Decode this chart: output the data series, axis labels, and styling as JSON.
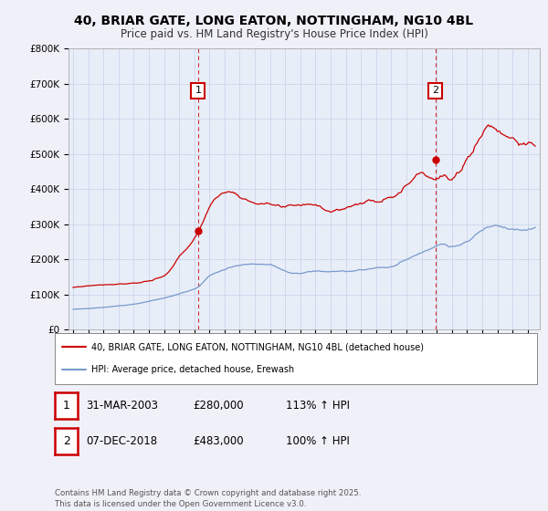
{
  "title_line1": "40, BRIAR GATE, LONG EATON, NOTTINGHAM, NG10 4BL",
  "title_line2": "Price paid vs. HM Land Registry's House Price Index (HPI)",
  "bg_color": "#f0f0f8",
  "plot_bg_color": "#e8eef8",
  "red_color": "#cc0000",
  "blue_color": "#7799cc",
  "marker1_year": 2003.25,
  "marker1_price": 280000,
  "marker2_year": 2018.92,
  "marker2_price": 483000,
  "legend_label_red": "40, BRIAR GATE, LONG EATON, NOTTINGHAM, NG10 4BL (detached house)",
  "legend_label_blue": "HPI: Average price, detached house, Erewash",
  "footnote": "Contains HM Land Registry data © Crown copyright and database right 2025.\nThis data is licensed under the Open Government Licence v3.0.",
  "table_row1": [
    "1",
    "31-MAR-2003",
    "£280,000",
    "113% ↑ HPI"
  ],
  "table_row2": [
    "2",
    "07-DEC-2018",
    "£483,000",
    "100% ↑ HPI"
  ],
  "yticks": [
    0,
    100000,
    200000,
    300000,
    400000,
    500000,
    600000,
    700000,
    800000
  ],
  "ytick_labels": [
    "£0",
    "£100K",
    "£200K",
    "£300K",
    "£400K",
    "£500K",
    "£600K",
    "£700K",
    "£800K"
  ]
}
